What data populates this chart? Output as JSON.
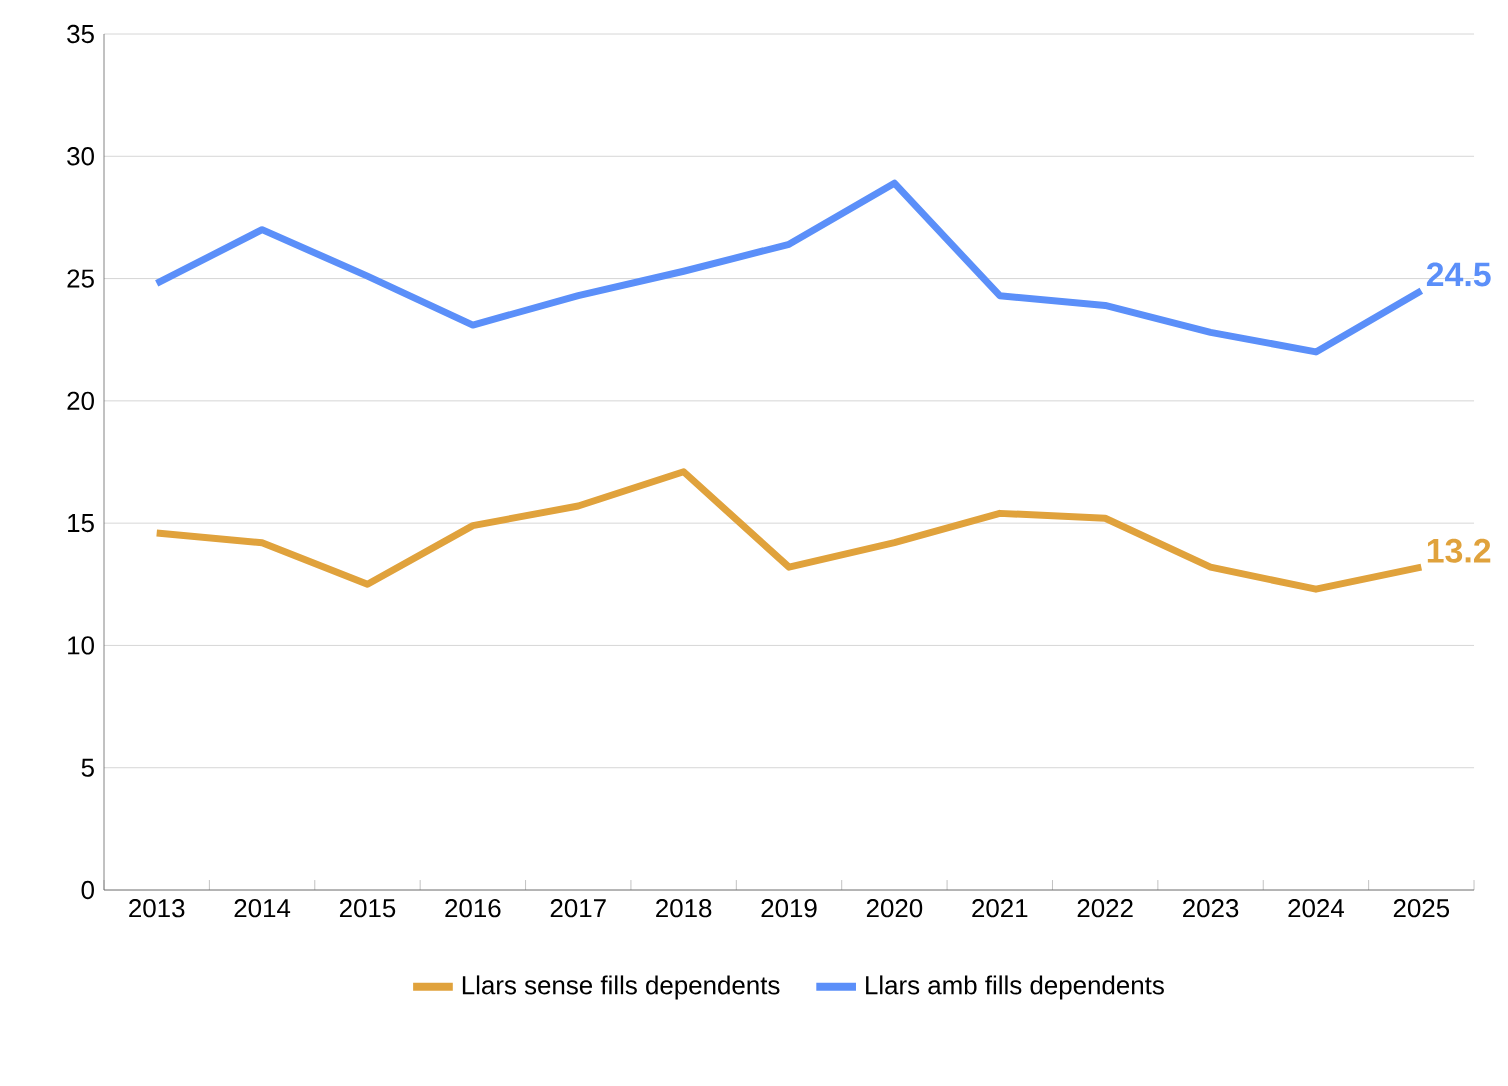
{
  "chart_data": {
    "type": "line",
    "categories": [
      "2013",
      "2014",
      "2015",
      "2016",
      "2017",
      "2018",
      "2019",
      "2020",
      "2021",
      "2022",
      "2023",
      "2024",
      "2025"
    ],
    "series": [
      {
        "name": "Llars sense fills dependents",
        "color": "#e0a23c",
        "values": [
          14.6,
          14.2,
          12.5,
          14.9,
          15.7,
          17.1,
          13.2,
          14.2,
          15.4,
          15.2,
          13.2,
          12.3,
          13.2
        ],
        "value_labels": [
          null,
          null,
          null,
          null,
          null,
          null,
          null,
          null,
          null,
          null,
          null,
          null,
          "13.2"
        ]
      },
      {
        "name": "Llars amb fills dependents",
        "color": "#5b8ff9",
        "values": [
          24.8,
          27.0,
          25.1,
          23.1,
          24.3,
          25.3,
          26.4,
          28.9,
          24.3,
          23.9,
          22.8,
          22.0,
          24.5
        ],
        "value_labels": [
          null,
          null,
          null,
          null,
          null,
          null,
          null,
          null,
          null,
          null,
          null,
          null,
          "24.5"
        ]
      }
    ],
    "ylim": [
      0,
      35
    ],
    "yticks": [
      0,
      5,
      10,
      15,
      20,
      25,
      30,
      35
    ],
    "grid": "y",
    "legend": "bottom",
    "marker": "none",
    "line_style": "solid"
  }
}
